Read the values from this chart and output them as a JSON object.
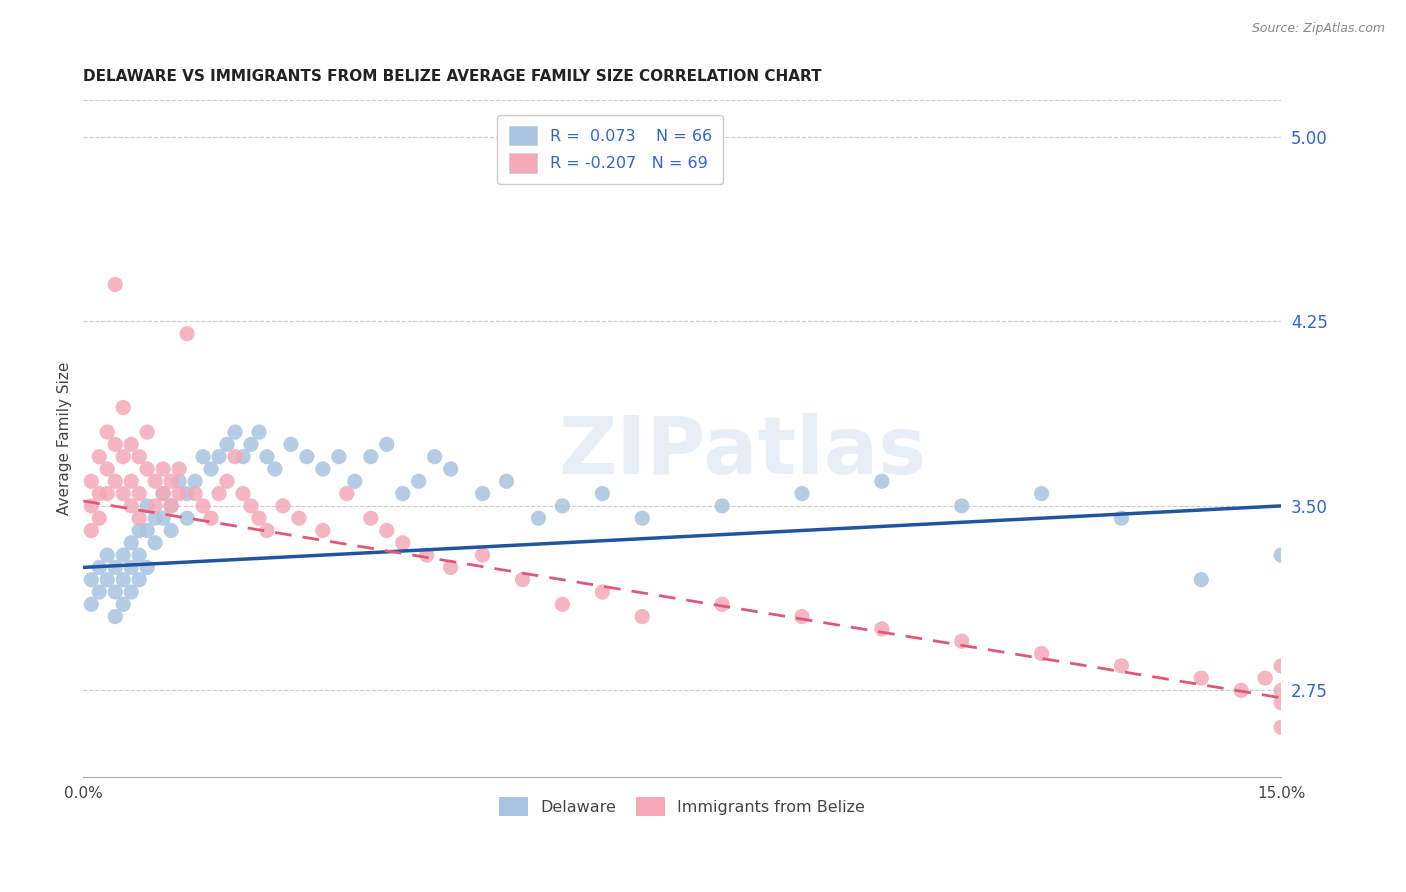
{
  "title": "DELAWARE VS IMMIGRANTS FROM BELIZE AVERAGE FAMILY SIZE CORRELATION CHART",
  "source": "Source: ZipAtlas.com",
  "ylabel": "Average Family Size",
  "right_yticks": [
    2.75,
    3.5,
    4.25,
    5.0
  ],
  "x_min": 0.0,
  "x_max": 0.15,
  "y_min": 2.4,
  "y_max": 5.15,
  "delaware_R": 0.073,
  "delaware_N": 66,
  "belize_R": -0.207,
  "belize_N": 69,
  "delaware_color": "#a8c4e0",
  "belize_color": "#f4a8b8",
  "delaware_line_color": "#2255a0",
  "belize_line_color": "#e05878",
  "watermark_text": "ZIPatlas",
  "delaware_x": [
    0.001,
    0.001,
    0.002,
    0.002,
    0.003,
    0.003,
    0.004,
    0.004,
    0.004,
    0.005,
    0.005,
    0.005,
    0.006,
    0.006,
    0.006,
    0.007,
    0.007,
    0.007,
    0.008,
    0.008,
    0.008,
    0.009,
    0.009,
    0.01,
    0.01,
    0.011,
    0.011,
    0.012,
    0.013,
    0.013,
    0.014,
    0.015,
    0.016,
    0.017,
    0.018,
    0.019,
    0.02,
    0.021,
    0.022,
    0.023,
    0.024,
    0.026,
    0.028,
    0.03,
    0.032,
    0.034,
    0.036,
    0.038,
    0.04,
    0.042,
    0.044,
    0.046,
    0.05,
    0.053,
    0.057,
    0.06,
    0.065,
    0.07,
    0.08,
    0.09,
    0.1,
    0.11,
    0.12,
    0.13,
    0.14,
    0.15
  ],
  "delaware_y": [
    3.2,
    3.1,
    3.25,
    3.15,
    3.3,
    3.2,
    3.25,
    3.15,
    3.05,
    3.3,
    3.2,
    3.1,
    3.35,
    3.25,
    3.15,
    3.4,
    3.3,
    3.2,
    3.5,
    3.4,
    3.25,
    3.45,
    3.35,
    3.55,
    3.45,
    3.5,
    3.4,
    3.6,
    3.55,
    3.45,
    3.6,
    3.7,
    3.65,
    3.7,
    3.75,
    3.8,
    3.7,
    3.75,
    3.8,
    3.7,
    3.65,
    3.75,
    3.7,
    3.65,
    3.7,
    3.6,
    3.7,
    3.75,
    3.55,
    3.6,
    3.7,
    3.65,
    3.55,
    3.6,
    3.45,
    3.5,
    3.55,
    3.45,
    3.5,
    3.55,
    3.6,
    3.5,
    3.55,
    3.45,
    3.2,
    3.3
  ],
  "belize_x": [
    0.001,
    0.001,
    0.001,
    0.002,
    0.002,
    0.002,
    0.003,
    0.003,
    0.003,
    0.004,
    0.004,
    0.004,
    0.005,
    0.005,
    0.005,
    0.006,
    0.006,
    0.006,
    0.007,
    0.007,
    0.007,
    0.008,
    0.008,
    0.009,
    0.009,
    0.01,
    0.01,
    0.011,
    0.011,
    0.012,
    0.012,
    0.013,
    0.014,
    0.015,
    0.016,
    0.017,
    0.018,
    0.019,
    0.02,
    0.021,
    0.022,
    0.023,
    0.025,
    0.027,
    0.03,
    0.033,
    0.036,
    0.038,
    0.04,
    0.043,
    0.046,
    0.05,
    0.055,
    0.06,
    0.065,
    0.07,
    0.08,
    0.09,
    0.1,
    0.11,
    0.12,
    0.13,
    0.14,
    0.145,
    0.148,
    0.15,
    0.15,
    0.15,
    0.15
  ],
  "belize_y": [
    3.6,
    3.5,
    3.4,
    3.7,
    3.55,
    3.45,
    3.8,
    3.65,
    3.55,
    4.4,
    3.75,
    3.6,
    3.9,
    3.7,
    3.55,
    3.75,
    3.6,
    3.5,
    3.7,
    3.55,
    3.45,
    3.8,
    3.65,
    3.6,
    3.5,
    3.65,
    3.55,
    3.6,
    3.5,
    3.65,
    3.55,
    4.2,
    3.55,
    3.5,
    3.45,
    3.55,
    3.6,
    3.7,
    3.55,
    3.5,
    3.45,
    3.4,
    3.5,
    3.45,
    3.4,
    3.55,
    3.45,
    3.4,
    3.35,
    3.3,
    3.25,
    3.3,
    3.2,
    3.1,
    3.15,
    3.05,
    3.1,
    3.05,
    3.0,
    2.95,
    2.9,
    2.85,
    2.8,
    2.75,
    2.8,
    2.75,
    2.7,
    2.85,
    2.6
  ]
}
